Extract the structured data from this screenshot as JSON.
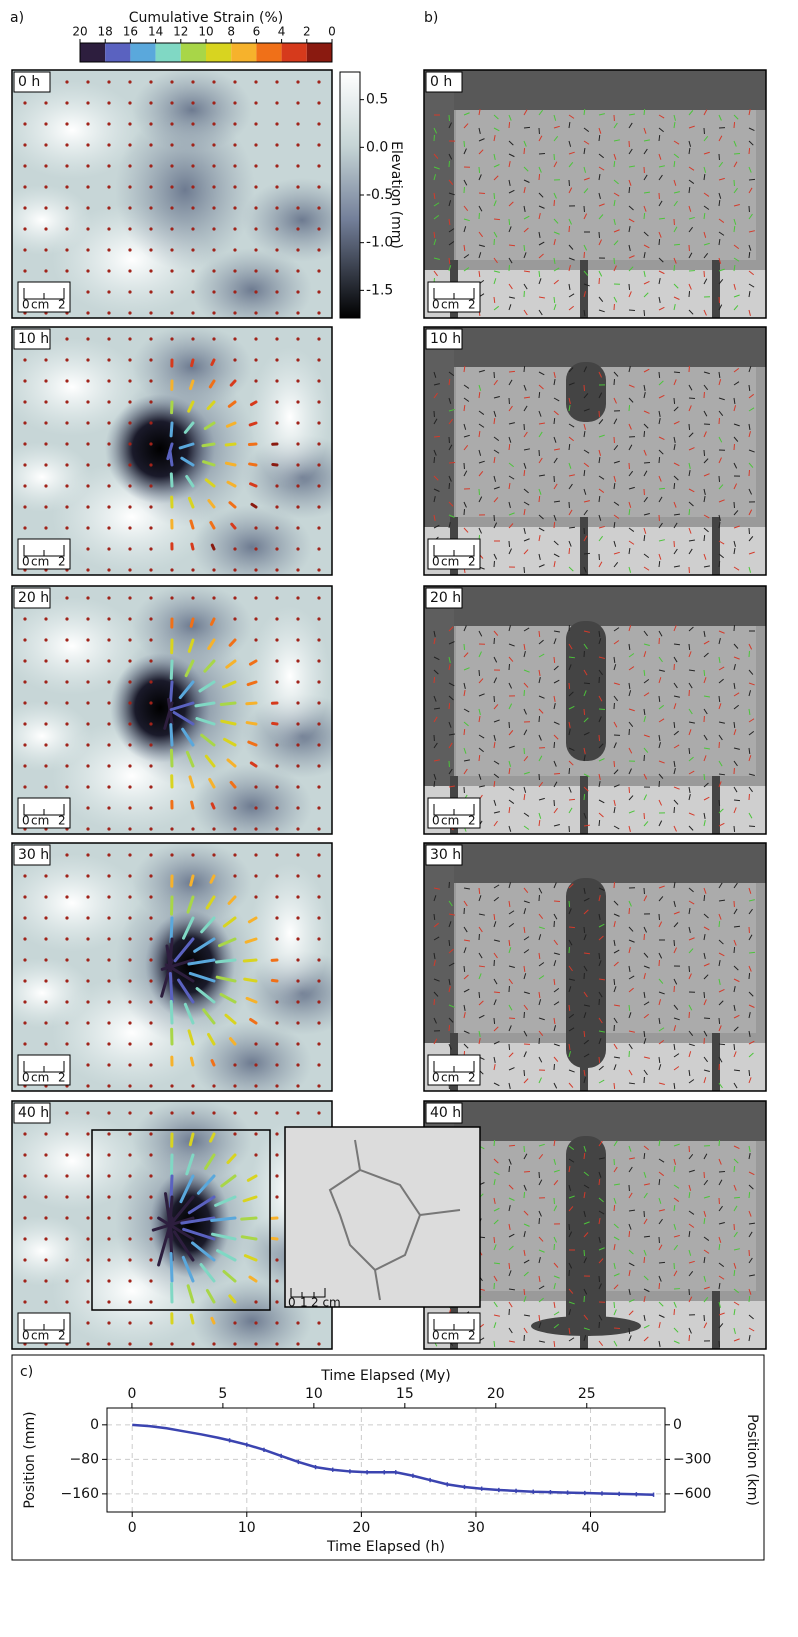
{
  "labels": {
    "a": "a)",
    "b": "b)",
    "c": "c)"
  },
  "strain_colorbar": {
    "title": "Cumulative Strain (%)",
    "ticks": [
      20,
      18,
      16,
      14,
      12,
      10,
      8,
      6,
      4,
      2,
      0
    ],
    "lim": [
      20,
      0
    ],
    "colors": [
      "#2d1e3e",
      "#5a62c0",
      "#5aa8dc",
      "#80d8c4",
      "#a8d648",
      "#d8d420",
      "#f6b22c",
      "#f07018",
      "#d63a1c",
      "#8a1a10"
    ]
  },
  "elevation_colorbar": {
    "label": "Elevation (mm)",
    "lim": [
      -1.79,
      0.79
    ],
    "ticks": [
      0.5,
      {
        "value": 0,
        "label": "0.0"
      },
      -0.5,
      {
        "value": -1,
        "label": "-1.0"
      },
      -1.5
    ]
  },
  "times": [
    "0 h",
    "10 h",
    "20 h",
    "30 h",
    "40 h"
  ],
  "scale_bar": [
    "0",
    "cm",
    "2"
  ],
  "inset_scale": [
    "0",
    "1",
    "2 cm"
  ],
  "chart_data": {
    "type": "line",
    "x_label": "Time Elapsed (h)",
    "x2_label": "Time Elapsed (My)",
    "y_label": "Position (mm)",
    "y2_label": "Position (km)",
    "x": [
      0,
      1.5,
      3,
      4.5,
      6,
      7.5,
      8.5,
      10,
      11.5,
      13,
      14.5,
      16,
      17.5,
      19,
      20.5,
      22,
      23,
      24.5,
      26,
      27.5,
      29,
      30.5,
      32,
      33.5,
      35,
      36.5,
      38,
      39.5,
      41,
      42.5,
      44,
      45.5
    ],
    "series": [
      {
        "color": "#3b44b0",
        "values": [
          0,
          -3,
          -8,
          -15,
          -22,
          -30,
          -36,
          -46,
          -58,
          -72,
          -86,
          -98,
          -104,
          -108,
          -110,
          -110,
          -110,
          -118,
          -128,
          -138,
          -144,
          -148,
          -151,
          -153,
          -155,
          -156,
          -157,
          -158,
          -159,
          -160,
          -161,
          -162
        ],
        "errors": [
          null,
          null,
          null,
          null,
          null,
          null,
          5,
          5,
          5,
          5,
          5,
          5,
          5,
          5,
          5,
          5,
          5,
          5,
          5,
          5,
          5,
          5,
          5,
          5,
          5,
          5,
          5,
          5,
          5,
          5,
          5,
          5
        ]
      }
    ],
    "xlim": [
      -2.2,
      46.5
    ],
    "xticks": [
      0,
      10,
      20,
      30,
      40
    ],
    "x2lim": [
      -1.37,
      29.3
    ],
    "x2ticks": [
      0,
      5,
      10,
      15,
      20,
      25
    ],
    "ylim": [
      -202,
      39
    ],
    "yticks": [
      0,
      {
        "value": -80,
        "label": "−80"
      },
      {
        "value": -160,
        "label": "−160"
      }
    ],
    "y2lim": [
      -757,
      146
    ],
    "y2ticks": [
      0,
      {
        "value": -300,
        "label": "−300"
      },
      {
        "value": -600,
        "label": "−600"
      }
    ],
    "grid": true
  }
}
